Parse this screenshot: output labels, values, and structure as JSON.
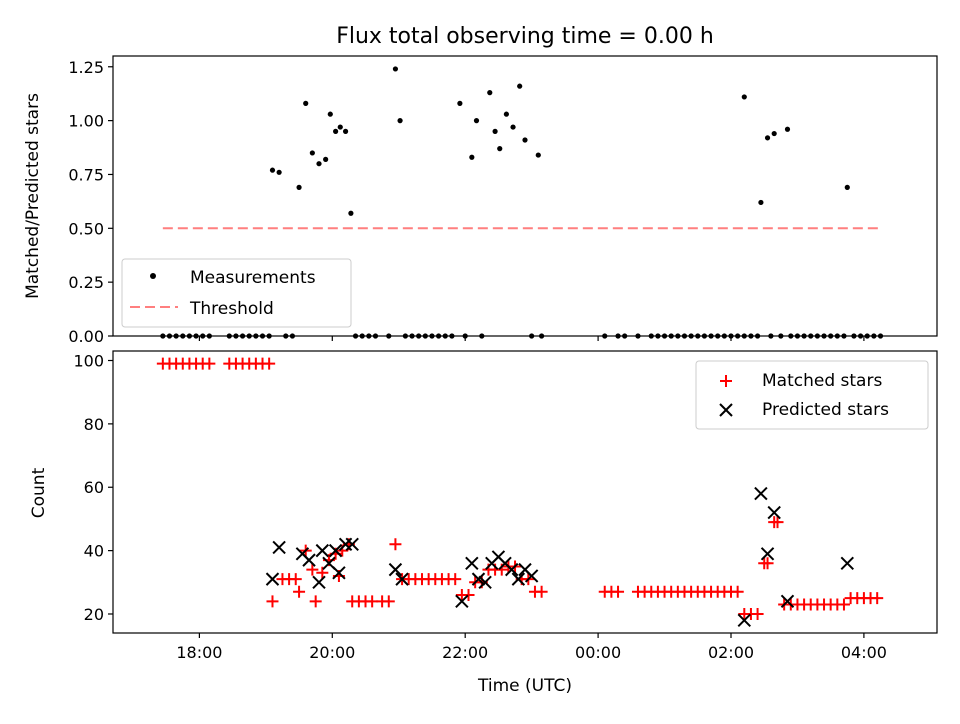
{
  "chart_data": [
    {
      "type": "scatter",
      "title": "Flux total observing time = 0.00 h",
      "xlabel": "",
      "ylabel": "Matched/Predicted stars",
      "xlim": [
        16.7,
        29.1
      ],
      "ylim": [
        0,
        1.3
      ],
      "yticks": [
        0,
        0.25,
        0.5,
        0.75,
        1.0,
        1.25
      ],
      "ytick_labels": [
        "0.00",
        "0.25",
        "0.50",
        "0.75",
        "1.00",
        "1.25"
      ],
      "legend_position": "lower-left",
      "series": [
        {
          "name": "Measurements",
          "marker": "dot",
          "color": "#000000",
          "points": [
            [
              19.1,
              0.77
            ],
            [
              19.2,
              0.76
            ],
            [
              19.5,
              0.69
            ],
            [
              19.6,
              1.08
            ],
            [
              19.7,
              0.85
            ],
            [
              19.8,
              0.8
            ],
            [
              19.9,
              0.82
            ],
            [
              19.97,
              1.03
            ],
            [
              20.05,
              0.95
            ],
            [
              20.12,
              0.97
            ],
            [
              20.2,
              0.95
            ],
            [
              20.28,
              0.57
            ],
            [
              20.95,
              1.24
            ],
            [
              21.02,
              1.0
            ],
            [
              21.92,
              1.08
            ],
            [
              22.1,
              0.83
            ],
            [
              22.17,
              1.0
            ],
            [
              22.37,
              1.13
            ],
            [
              22.45,
              0.95
            ],
            [
              22.52,
              0.87
            ],
            [
              22.62,
              1.03
            ],
            [
              22.72,
              0.97
            ],
            [
              22.82,
              1.16
            ],
            [
              22.9,
              0.91
            ],
            [
              23.1,
              0.84
            ],
            [
              26.2,
              1.11
            ],
            [
              26.45,
              0.62
            ],
            [
              26.55,
              0.92
            ],
            [
              26.65,
              0.94
            ],
            [
              26.85,
              0.96
            ],
            [
              27.75,
              0.69
            ],
            [
              17.45,
              0
            ],
            [
              17.55,
              0
            ],
            [
              17.65,
              0
            ],
            [
              17.75,
              0
            ],
            [
              17.85,
              0
            ],
            [
              17.95,
              0
            ],
            [
              18.05,
              0
            ],
            [
              18.15,
              0
            ],
            [
              18.45,
              0
            ],
            [
              18.55,
              0
            ],
            [
              18.65,
              0
            ],
            [
              18.75,
              0
            ],
            [
              18.85,
              0
            ],
            [
              18.95,
              0
            ],
            [
              19.05,
              0
            ],
            [
              19.3,
              0
            ],
            [
              19.4,
              0
            ],
            [
              20.35,
              0
            ],
            [
              20.45,
              0
            ],
            [
              20.55,
              0
            ],
            [
              20.65,
              0
            ],
            [
              20.85,
              0
            ],
            [
              21.1,
              0
            ],
            [
              21.2,
              0
            ],
            [
              21.3,
              0
            ],
            [
              21.4,
              0
            ],
            [
              21.5,
              0
            ],
            [
              21.6,
              0
            ],
            [
              21.7,
              0
            ],
            [
              21.8,
              0
            ],
            [
              22.0,
              0
            ],
            [
              22.25,
              0
            ],
            [
              23.0,
              0
            ],
            [
              23.15,
              0
            ],
            [
              24.1,
              0
            ],
            [
              24.3,
              0
            ],
            [
              24.4,
              0
            ],
            [
              24.6,
              0
            ],
            [
              24.8,
              0
            ],
            [
              24.9,
              0
            ],
            [
              25.0,
              0
            ],
            [
              25.1,
              0
            ],
            [
              25.2,
              0
            ],
            [
              25.3,
              0
            ],
            [
              25.4,
              0
            ],
            [
              25.5,
              0
            ],
            [
              25.6,
              0
            ],
            [
              25.7,
              0
            ],
            [
              25.8,
              0
            ],
            [
              25.9,
              0
            ],
            [
              26.0,
              0
            ],
            [
              26.1,
              0
            ],
            [
              26.2,
              0
            ],
            [
              26.3,
              0
            ],
            [
              26.4,
              0
            ],
            [
              26.6,
              0
            ],
            [
              26.75,
              0
            ],
            [
              26.9,
              0
            ],
            [
              27.0,
              0
            ],
            [
              27.1,
              0
            ],
            [
              27.2,
              0
            ],
            [
              27.3,
              0
            ],
            [
              27.4,
              0
            ],
            [
              27.5,
              0
            ],
            [
              27.6,
              0
            ],
            [
              27.7,
              0
            ],
            [
              27.85,
              0
            ],
            [
              27.95,
              0
            ],
            [
              28.05,
              0
            ],
            [
              28.15,
              0
            ],
            [
              28.25,
              0
            ]
          ]
        },
        {
          "name": "Threshold",
          "style": "dashed-line",
          "color": "#ff7f7f",
          "points": [
            [
              17.45,
              0.5
            ],
            [
              28.25,
              0.5
            ]
          ]
        }
      ]
    },
    {
      "type": "scatter",
      "title": "",
      "xlabel": "Time (UTC)",
      "ylabel": "Count",
      "xlim": [
        16.7,
        29.1
      ],
      "ylim": [
        14,
        103
      ],
      "yticks": [
        20,
        40,
        60,
        80,
        100
      ],
      "ytick_labels": [
        "20",
        "40",
        "60",
        "80",
        "100"
      ],
      "xticks": [
        18,
        20,
        22,
        24,
        26,
        28
      ],
      "xtick_labels": [
        "18:00",
        "20:00",
        "22:00",
        "00:00",
        "02:00",
        "04:00"
      ],
      "legend_position": "top-right",
      "series": [
        {
          "name": "Matched stars",
          "marker": "plus",
          "color": "#ff0000",
          "points": [
            [
              17.45,
              99
            ],
            [
              17.55,
              99
            ],
            [
              17.65,
              99
            ],
            [
              17.75,
              99
            ],
            [
              17.85,
              99
            ],
            [
              17.95,
              99
            ],
            [
              18.05,
              99
            ],
            [
              18.15,
              99
            ],
            [
              18.45,
              99
            ],
            [
              18.55,
              99
            ],
            [
              18.65,
              99
            ],
            [
              18.75,
              99
            ],
            [
              18.85,
              99
            ],
            [
              18.95,
              99
            ],
            [
              19.05,
              99
            ],
            [
              19.1,
              24
            ],
            [
              19.25,
              31
            ],
            [
              19.35,
              31
            ],
            [
              19.45,
              31
            ],
            [
              19.5,
              27
            ],
            [
              19.6,
              40
            ],
            [
              19.7,
              34
            ],
            [
              19.75,
              24
            ],
            [
              19.85,
              33
            ],
            [
              19.95,
              37
            ],
            [
              20.05,
              39
            ],
            [
              20.1,
              32
            ],
            [
              20.15,
              40
            ],
            [
              20.25,
              42
            ],
            [
              20.3,
              24
            ],
            [
              20.4,
              24
            ],
            [
              20.5,
              24
            ],
            [
              20.6,
              24
            ],
            [
              20.75,
              24
            ],
            [
              20.85,
              24
            ],
            [
              20.95,
              42
            ],
            [
              21.05,
              31
            ],
            [
              21.15,
              31
            ],
            [
              21.25,
              31
            ],
            [
              21.35,
              31
            ],
            [
              21.45,
              31
            ],
            [
              21.55,
              31
            ],
            [
              21.65,
              31
            ],
            [
              21.75,
              31
            ],
            [
              21.85,
              31
            ],
            [
              21.95,
              26
            ],
            [
              22.05,
              26
            ],
            [
              22.15,
              30
            ],
            [
              22.25,
              30
            ],
            [
              22.35,
              34
            ],
            [
              22.45,
              34
            ],
            [
              22.55,
              34
            ],
            [
              22.65,
              35
            ],
            [
              22.75,
              35
            ],
            [
              22.85,
              31
            ],
            [
              22.95,
              31
            ],
            [
              23.05,
              27
            ],
            [
              23.15,
              27
            ],
            [
              24.1,
              27
            ],
            [
              24.2,
              27
            ],
            [
              24.3,
              27
            ],
            [
              24.6,
              27
            ],
            [
              24.7,
              27
            ],
            [
              24.8,
              27
            ],
            [
              24.9,
              27
            ],
            [
              25.0,
              27
            ],
            [
              25.1,
              27
            ],
            [
              25.2,
              27
            ],
            [
              25.3,
              27
            ],
            [
              25.4,
              27
            ],
            [
              25.5,
              27
            ],
            [
              25.6,
              27
            ],
            [
              25.7,
              27
            ],
            [
              25.8,
              27
            ],
            [
              25.9,
              27
            ],
            [
              26.0,
              27
            ],
            [
              26.1,
              27
            ],
            [
              26.2,
              20
            ],
            [
              26.3,
              20
            ],
            [
              26.4,
              20
            ],
            [
              26.5,
              36
            ],
            [
              26.55,
              36
            ],
            [
              26.65,
              49
            ],
            [
              26.7,
              49
            ],
            [
              26.8,
              23
            ],
            [
              26.9,
              23
            ],
            [
              27.0,
              23
            ],
            [
              27.1,
              23
            ],
            [
              27.2,
              23
            ],
            [
              27.3,
              23
            ],
            [
              27.4,
              23
            ],
            [
              27.5,
              23
            ],
            [
              27.6,
              23
            ],
            [
              27.7,
              23
            ],
            [
              27.8,
              25
            ],
            [
              27.9,
              25
            ],
            [
              28.0,
              25
            ],
            [
              28.1,
              25
            ],
            [
              28.2,
              25
            ]
          ]
        },
        {
          "name": "Predicted stars",
          "marker": "x",
          "color": "#000000",
          "points": [
            [
              19.1,
              31
            ],
            [
              19.2,
              41
            ],
            [
              19.55,
              39
            ],
            [
              19.65,
              37
            ],
            [
              19.8,
              30
            ],
            [
              19.85,
              40
            ],
            [
              19.95,
              36
            ],
            [
              20.05,
              40
            ],
            [
              20.1,
              33
            ],
            [
              20.2,
              42
            ],
            [
              20.3,
              42
            ],
            [
              20.95,
              34
            ],
            [
              21.05,
              31
            ],
            [
              21.95,
              24
            ],
            [
              22.1,
              36
            ],
            [
              22.2,
              31
            ],
            [
              22.3,
              30
            ],
            [
              22.4,
              36
            ],
            [
              22.5,
              38
            ],
            [
              22.6,
              36
            ],
            [
              22.7,
              34
            ],
            [
              22.8,
              31
            ],
            [
              22.9,
              34
            ],
            [
              23.0,
              32
            ],
            [
              26.2,
              18
            ],
            [
              26.45,
              58
            ],
            [
              26.55,
              39
            ],
            [
              26.65,
              52
            ],
            [
              26.85,
              24
            ],
            [
              27.75,
              36
            ]
          ]
        }
      ]
    }
  ]
}
